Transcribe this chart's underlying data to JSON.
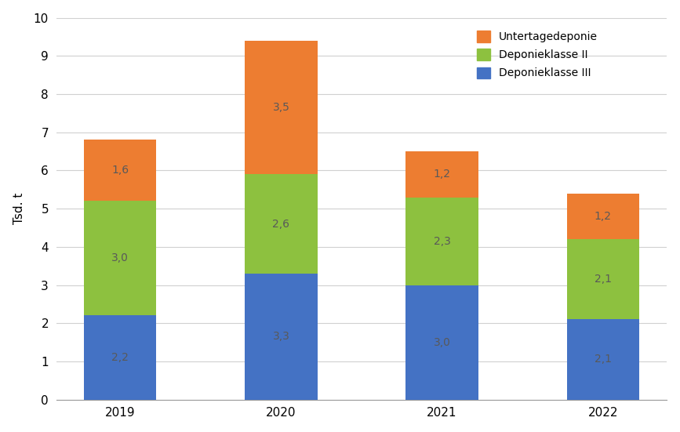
{
  "years": [
    "2019",
    "2020",
    "2021",
    "2022"
  ],
  "deponie_III": [
    2.2,
    3.3,
    3.0,
    2.1
  ],
  "deponie_II": [
    3.0,
    2.6,
    2.3,
    2.1
  ],
  "untertagedeponie": [
    1.6,
    3.5,
    1.2,
    1.2
  ],
  "labels_III": [
    "2,2",
    "3,3",
    "3,0",
    "2,1"
  ],
  "labels_II": [
    "3,0",
    "2,6",
    "2,3",
    "2,1"
  ],
  "labels_unter": [
    "1,6",
    "3,5",
    "1,2",
    "1,2"
  ],
  "color_III": "#4472C4",
  "color_II": "#8DC13F",
  "color_unter": "#ED7D31",
  "label_III": "Deponieklasse III",
  "label_II": "Deponieklasse II",
  "label_unter": "Untertagedeponie",
  "ylabel": "Tsd. t",
  "ylim": [
    0,
    10
  ],
  "yticks": [
    0,
    1,
    2,
    3,
    4,
    5,
    6,
    7,
    8,
    9,
    10
  ],
  "background_color": "#ffffff",
  "bar_width": 0.45,
  "fontsize_labels": 10,
  "fontsize_ticks": 11,
  "fontsize_legend": 10,
  "fontsize_ylabel": 11,
  "text_color": "#595959",
  "grid_color": "#d0d0d0"
}
